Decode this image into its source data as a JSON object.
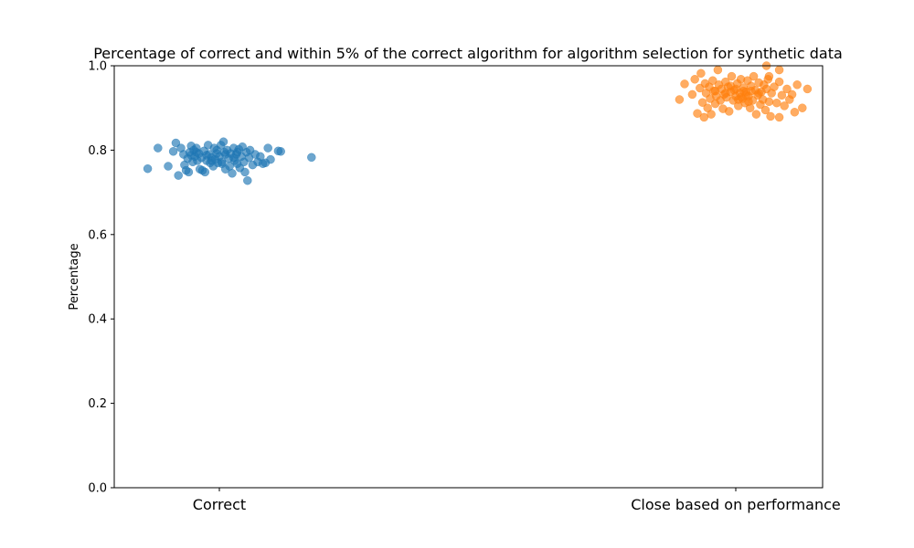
{
  "chart_data": {
    "type": "scatter",
    "title": "Percentage of correct and within 5% of the correct algorithm for algorithm selection for synthetic data",
    "xlabel": "",
    "ylabel": "Percentage",
    "ylim": [
      0,
      1
    ],
    "yticks": [
      "0.0",
      "0.2",
      "0.4",
      "0.6",
      "0.8",
      "1.0"
    ],
    "categories": [
      "Correct",
      "Close based on performance"
    ],
    "grid": false,
    "legend": "none",
    "series": [
      {
        "category": "Correct",
        "color": "#1f77b4",
        "points": [
          [
            -0.14,
            0.756
          ],
          [
            -0.12,
            0.805
          ],
          [
            -0.1,
            0.762
          ],
          [
            -0.09,
            0.797
          ],
          [
            -0.085,
            0.817
          ],
          [
            -0.08,
            0.74
          ],
          [
            -0.075,
            0.805
          ],
          [
            -0.07,
            0.79
          ],
          [
            -0.068,
            0.765
          ],
          [
            -0.065,
            0.752
          ],
          [
            -0.062,
            0.78
          ],
          [
            -0.06,
            0.748
          ],
          [
            -0.058,
            0.795
          ],
          [
            -0.055,
            0.81
          ],
          [
            -0.052,
            0.772
          ],
          [
            -0.05,
            0.8
          ],
          [
            -0.048,
            0.785
          ],
          [
            -0.045,
            0.805
          ],
          [
            -0.043,
            0.775
          ],
          [
            -0.04,
            0.792
          ],
          [
            -0.038,
            0.755
          ],
          [
            -0.035,
            0.782
          ],
          [
            -0.033,
            0.752
          ],
          [
            -0.03,
            0.798
          ],
          [
            -0.028,
            0.748
          ],
          [
            -0.025,
            0.775
          ],
          [
            -0.022,
            0.812
          ],
          [
            -0.02,
            0.79
          ],
          [
            -0.018,
            0.77
          ],
          [
            -0.015,
            0.783
          ],
          [
            -0.012,
            0.762
          ],
          [
            -0.01,
            0.805
          ],
          [
            -0.008,
            0.778
          ],
          [
            -0.005,
            0.792
          ],
          [
            -0.003,
            0.77
          ],
          [
            0.0,
            0.785
          ],
          [
            0.003,
            0.812
          ],
          [
            0.005,
            0.772
          ],
          [
            0.008,
            0.82
          ],
          [
            0.01,
            0.795
          ],
          [
            0.012,
            0.755
          ],
          [
            0.015,
            0.8
          ],
          [
            0.018,
            0.78
          ],
          [
            0.02,
            0.762
          ],
          [
            0.022,
            0.792
          ],
          [
            0.025,
            0.745
          ],
          [
            0.028,
            0.805
          ],
          [
            0.03,
            0.775
          ],
          [
            0.033,
            0.79
          ],
          [
            0.035,
            0.768
          ],
          [
            0.038,
            0.802
          ],
          [
            0.04,
            0.758
          ],
          [
            0.043,
            0.785
          ],
          [
            0.045,
            0.808
          ],
          [
            0.048,
            0.772
          ],
          [
            0.05,
            0.748
          ],
          [
            0.053,
            0.795
          ],
          [
            0.055,
            0.728
          ],
          [
            0.058,
            0.782
          ],
          [
            0.06,
            0.8
          ],
          [
            0.065,
            0.765
          ],
          [
            0.07,
            0.79
          ],
          [
            0.075,
            0.772
          ],
          [
            0.08,
            0.785
          ],
          [
            0.085,
            0.768
          ],
          [
            0.09,
            0.77
          ],
          [
            0.095,
            0.805
          ],
          [
            0.1,
            0.778
          ],
          [
            0.115,
            0.798
          ],
          [
            0.12,
            0.797
          ],
          [
            0.18,
            0.783
          ],
          [
            -0.045,
            0.795
          ],
          [
            -0.015,
            0.775
          ],
          [
            0.012,
            0.79
          ],
          [
            0.028,
            0.782
          ],
          [
            -0.025,
            0.788
          ],
          [
            0.035,
            0.795
          ],
          [
            -0.055,
            0.788
          ],
          [
            0.005,
            0.768
          ],
          [
            -0.005,
            0.8
          ]
        ]
      },
      {
        "category": "Close based on performance",
        "color": "#ff7f0e",
        "points": [
          [
            -0.11,
            0.92
          ],
          [
            -0.1,
            0.957
          ],
          [
            -0.085,
            0.932
          ],
          [
            -0.08,
            0.968
          ],
          [
            -0.075,
            0.887
          ],
          [
            -0.07,
            0.947
          ],
          [
            -0.068,
            0.982
          ],
          [
            -0.065,
            0.913
          ],
          [
            -0.062,
            0.878
          ],
          [
            -0.06,
            0.958
          ],
          [
            -0.058,
            0.935
          ],
          [
            -0.055,
            0.9
          ],
          [
            -0.052,
            0.95
          ],
          [
            -0.05,
            0.922
          ],
          [
            -0.048,
            0.885
          ],
          [
            -0.045,
            0.965
          ],
          [
            -0.043,
            0.94
          ],
          [
            -0.04,
            0.91
          ],
          [
            -0.038,
            0.928
          ],
          [
            -0.035,
            0.99
          ],
          [
            -0.033,
            0.955
          ],
          [
            -0.03,
            0.918
          ],
          [
            -0.028,
            0.945
          ],
          [
            -0.025,
            0.898
          ],
          [
            -0.023,
            0.932
          ],
          [
            -0.02,
            0.962
          ],
          [
            -0.018,
            0.925
          ],
          [
            -0.015,
            0.95
          ],
          [
            -0.013,
            0.892
          ],
          [
            -0.01,
            0.938
          ],
          [
            -0.008,
            0.975
          ],
          [
            -0.005,
            0.918
          ],
          [
            -0.003,
            0.942
          ],
          [
            0.0,
            0.928
          ],
          [
            0.003,
            0.958
          ],
          [
            0.005,
            0.905
          ],
          [
            0.008,
            0.935
          ],
          [
            0.01,
            0.968
          ],
          [
            0.013,
            0.922
          ],
          [
            0.015,
            0.948
          ],
          [
            0.018,
            0.912
          ],
          [
            0.02,
            0.938
          ],
          [
            0.023,
            0.965
          ],
          [
            0.025,
            0.928
          ],
          [
            0.028,
            0.9
          ],
          [
            0.03,
            0.952
          ],
          [
            0.033,
            0.918
          ],
          [
            0.035,
            0.975
          ],
          [
            0.038,
            0.942
          ],
          [
            0.04,
            0.885
          ],
          [
            0.043,
            0.93
          ],
          [
            0.045,
            0.96
          ],
          [
            0.048,
            0.908
          ],
          [
            0.05,
            0.938
          ],
          [
            0.053,
            0.92
          ],
          [
            0.055,
            0.955
          ],
          [
            0.058,
            0.895
          ],
          [
            0.06,
            0.945
          ],
          [
            0.063,
            0.968
          ],
          [
            0.065,
            0.915
          ],
          [
            0.068,
            0.88
          ],
          [
            0.07,
            0.935
          ],
          [
            0.075,
            0.95
          ],
          [
            0.08,
            0.912
          ],
          [
            0.085,
            0.962
          ],
          [
            0.09,
            0.93
          ],
          [
            0.095,
            0.905
          ],
          [
            0.1,
            0.945
          ],
          [
            0.105,
            0.92
          ],
          [
            0.11,
            0.932
          ],
          [
            0.115,
            0.89
          ],
          [
            0.12,
            0.955
          ],
          [
            0.13,
            0.9
          ],
          [
            0.14,
            0.945
          ],
          [
            0.06,
            1.0
          ],
          [
            0.065,
            0.975
          ],
          [
            0.085,
            0.99
          ],
          [
            0.085,
            0.878
          ],
          [
            -0.02,
            0.935
          ],
          [
            0.0,
            0.945
          ],
          [
            0.01,
            0.925
          ],
          [
            0.02,
            0.93
          ],
          [
            0.03,
            0.94
          ],
          [
            -0.01,
            0.952
          ],
          [
            0.045,
            0.935
          ],
          [
            0.015,
            0.94
          ],
          [
            -0.04,
            0.94
          ],
          [
            0.025,
            0.915
          ],
          [
            0.005,
            0.92
          ]
        ]
      }
    ]
  }
}
